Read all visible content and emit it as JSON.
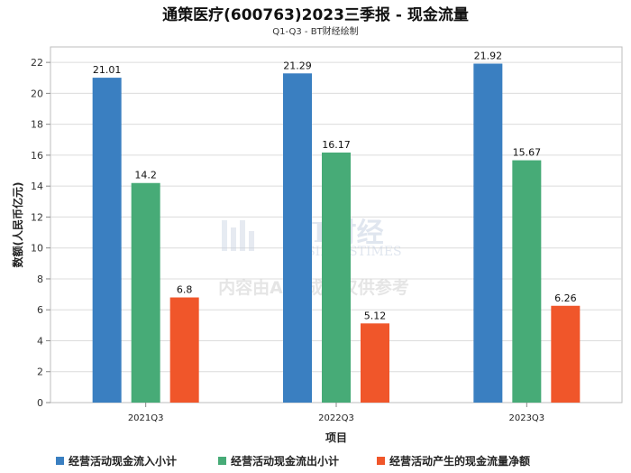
{
  "chart_data": {
    "type": "bar",
    "title": "通策医疗(600763)2023三季报 - 现金流量",
    "subtitle": "Q1-Q3 - BT财经绘制",
    "xlabel": "项目",
    "ylabel": "数额(人民币亿元)",
    "categories": [
      "2021Q3",
      "2022Q3",
      "2023Q3"
    ],
    "ylim": [
      0,
      23
    ],
    "yticks": [
      0,
      2,
      4,
      6,
      8,
      10,
      12,
      14,
      16,
      18,
      20,
      22
    ],
    "grid": true,
    "legend_position": "bottom",
    "series": [
      {
        "name": "经营活动现金流入小计",
        "color": "#3a7fc1",
        "values": [
          21.01,
          21.29,
          21.92
        ],
        "labels": [
          "21.01",
          "21.29",
          "21.92"
        ]
      },
      {
        "name": "经营活动现金流出小计",
        "color": "#47ab77",
        "values": [
          14.2,
          16.17,
          15.67
        ],
        "labels": [
          "14.2",
          "16.17",
          "15.67"
        ]
      },
      {
        "name": "经营活动产生的现金流量净额",
        "color": "#f0562a",
        "values": [
          6.8,
          5.12,
          6.26
        ],
        "labels": [
          "6.8",
          "5.12",
          "6.26"
        ]
      }
    ]
  },
  "watermark": {
    "brand": "BT财经",
    "brand_en": "BUSINESSTIMES",
    "notice": "内容由AI生成，仅供参考"
  }
}
